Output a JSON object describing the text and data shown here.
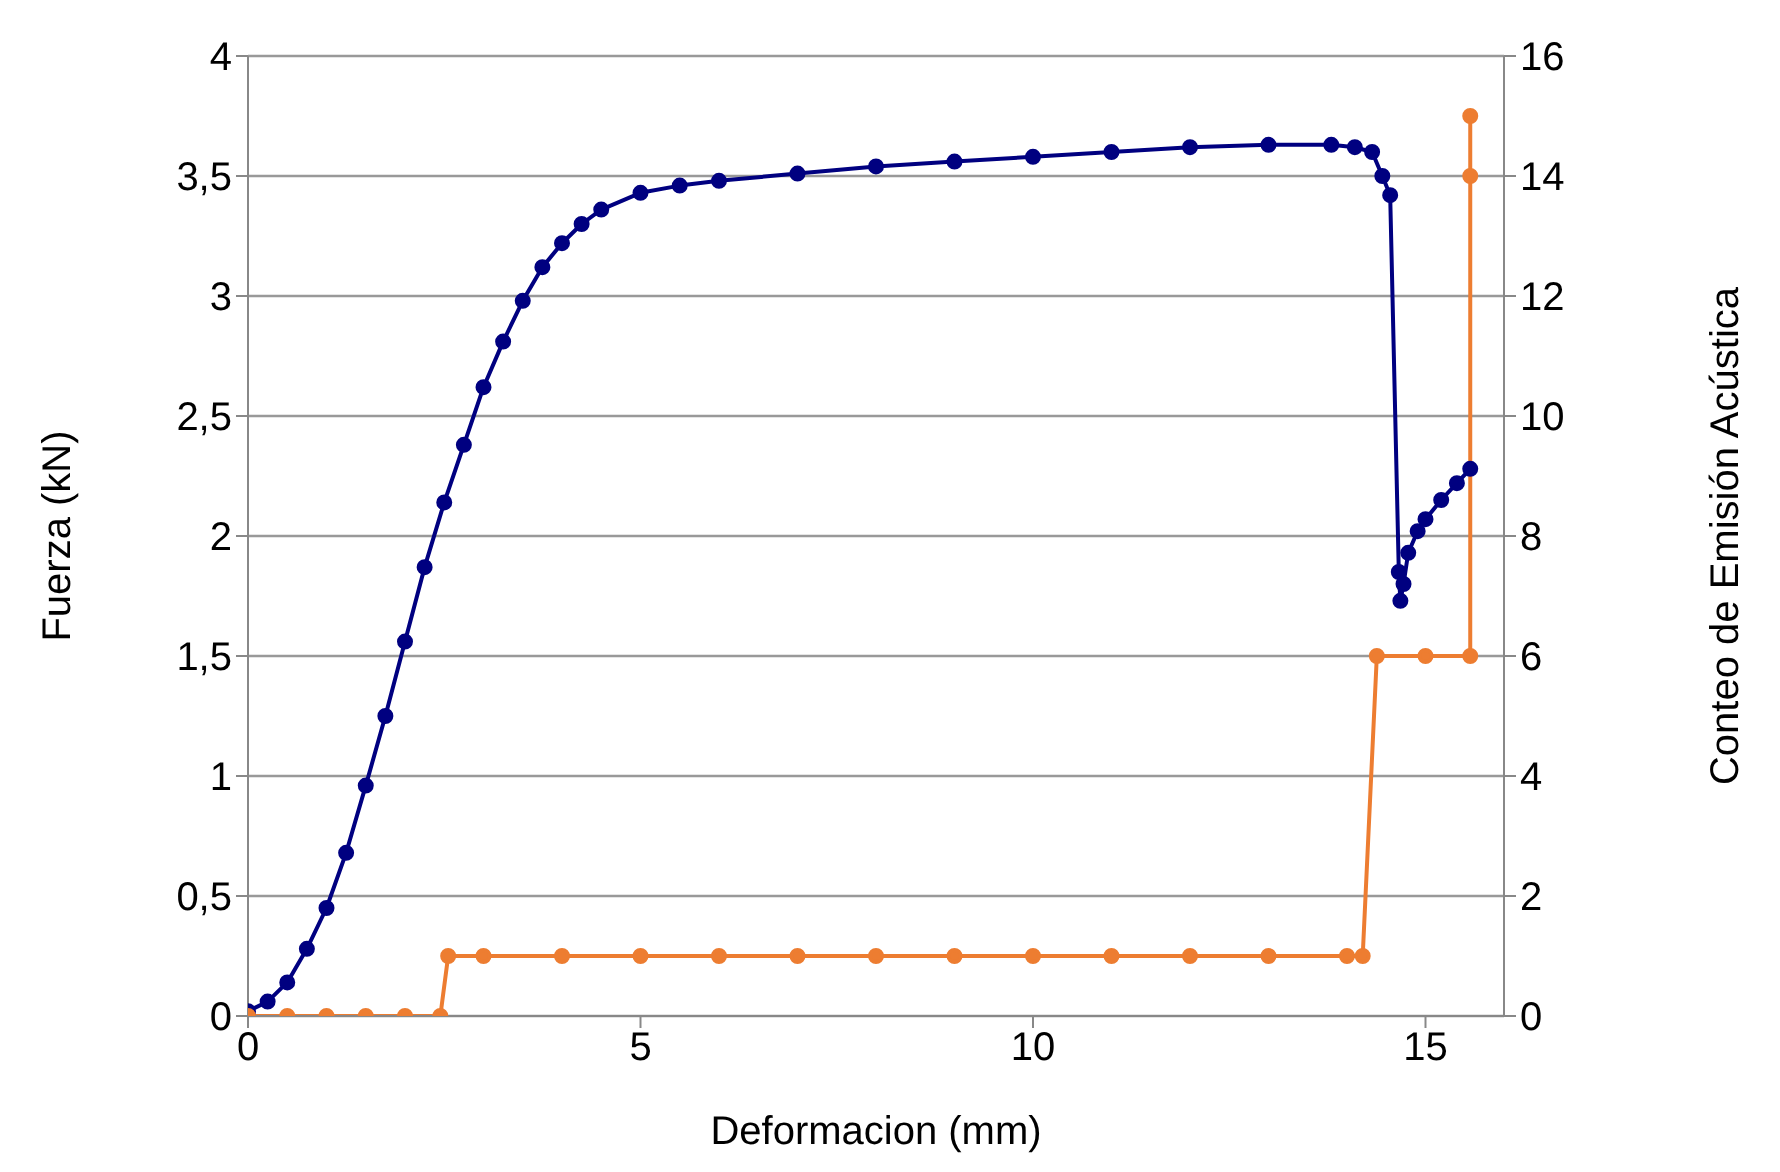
{
  "chart_data": {
    "type": "line",
    "xlabel": "Deformacion (mm)",
    "ylabel": "Fuerza (kN)",
    "y2label": "Conteo de Emisión Acústica",
    "xlim": [
      0,
      16
    ],
    "xticks": [
      0,
      5,
      10,
      15
    ],
    "ylim": [
      0,
      4
    ],
    "yticks": [
      0,
      {
        "value": 0.5,
        "label": "0,5"
      },
      1,
      {
        "value": 1.5,
        "label": "1,5"
      },
      2,
      {
        "value": 2.5,
        "label": "2,5"
      },
      3,
      {
        "value": 3.5,
        "label": "3,5"
      },
      4
    ],
    "y2lim": [
      0,
      16
    ],
    "y2ticks": [
      0,
      2,
      4,
      6,
      8,
      10,
      12,
      14,
      16
    ],
    "grid": "y",
    "legend": false,
    "marker": "circle",
    "line_style": "solid",
    "series": [
      {
        "color": "#000080",
        "x": [
          0,
          0.25,
          0.5,
          0.75,
          1.0,
          1.25,
          1.5,
          1.75,
          2.0,
          2.25,
          2.5,
          2.75,
          3.0,
          3.25,
          3.5,
          3.75,
          4.0,
          4.25,
          4.5,
          5.0,
          5.5,
          6.0,
          7.0,
          8.0,
          9.0,
          10.0,
          11.0,
          12.0,
          13.0,
          13.8,
          14.1,
          14.32,
          14.45,
          14.55,
          14.66,
          14.68,
          14.72,
          14.78,
          14.9,
          15.0,
          15.2,
          15.4,
          15.57
        ],
        "values": [
          0.02,
          0.06,
          0.14,
          0.28,
          0.45,
          0.68,
          0.96,
          1.25,
          1.56,
          1.87,
          2.14,
          2.38,
          2.62,
          2.81,
          2.98,
          3.12,
          3.22,
          3.3,
          3.36,
          3.43,
          3.46,
          3.48,
          3.51,
          3.54,
          3.56,
          3.58,
          3.6,
          3.62,
          3.63,
          3.63,
          3.62,
          3.6,
          3.5,
          3.42,
          1.85,
          1.73,
          1.8,
          1.93,
          2.02,
          2.07,
          2.15,
          2.22,
          2.28
        ]
      },
      {
        "color": "#ed7d31",
        "axis": "y2",
        "x": [
          0,
          0.5,
          1,
          1.5,
          2,
          2.45,
          2.55,
          3,
          4,
          5,
          6,
          7,
          8,
          9,
          10,
          11,
          12,
          13,
          14,
          14.2,
          14.38,
          15,
          15.57,
          15.57,
          15.57
        ],
        "values": [
          0,
          0,
          0,
          0,
          0,
          0,
          1,
          1,
          1,
          1,
          1,
          1,
          1,
          1,
          1,
          1,
          1,
          1,
          1,
          1,
          6,
          6,
          6,
          14,
          15
        ]
      }
    ]
  }
}
